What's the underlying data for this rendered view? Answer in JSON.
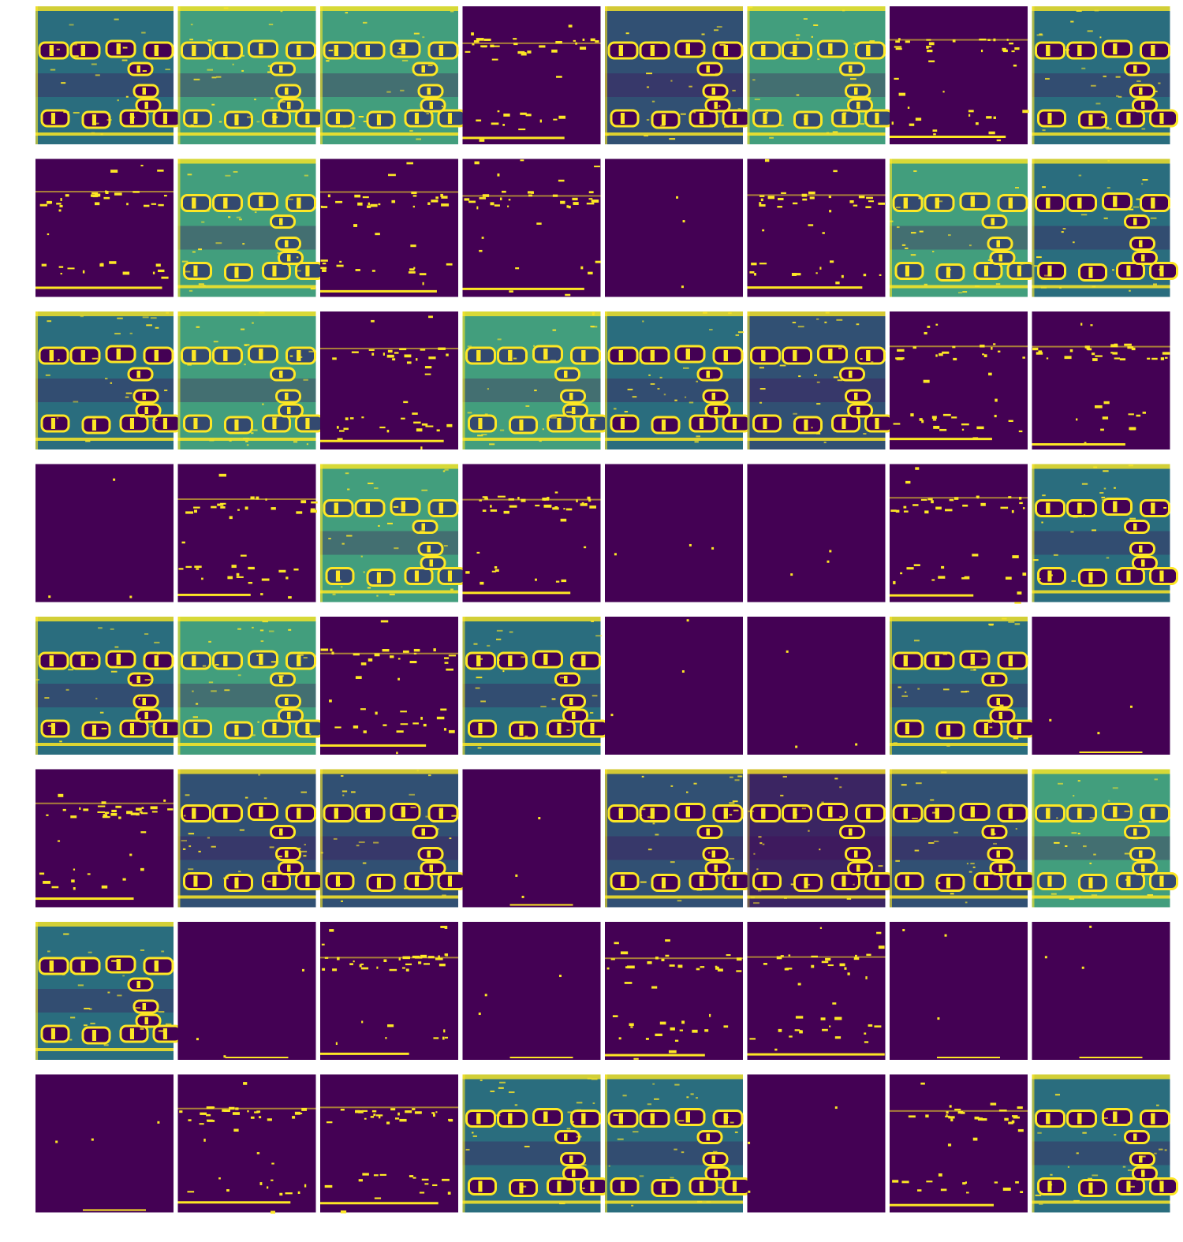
{
  "figure": {
    "rows": 8,
    "cols": 8,
    "colormap": {
      "low": "#440154",
      "mid": "#21918c",
      "high": "#fde725"
    },
    "background": "#ffffff",
    "feature_maps": [
      [
        "mixed",
        "scene-bright",
        "scene-bright",
        "sparse",
        "scene-dark",
        "scene-bright",
        "sparse",
        "mixed"
      ],
      [
        "sparse",
        "scene-bright",
        "sparse",
        "sparse",
        "empty",
        "sparse",
        "scene-bright",
        "mixed"
      ],
      [
        "scene",
        "scene-bright",
        "sparse",
        "scene-bright",
        "scene",
        "scene-dark",
        "sparse",
        "sparse"
      ],
      [
        "empty",
        "sparse",
        "scene-bright",
        "sparse",
        "empty",
        "empty",
        "sparse",
        "scene"
      ],
      [
        "scene",
        "scene-bright",
        "sparse",
        "scene",
        "empty",
        "empty",
        "scene",
        "empty"
      ],
      [
        "sparse",
        "scene-dark",
        "scene-dark",
        "empty",
        "scene-dark",
        "edges",
        "scene-dark",
        "scene-bright"
      ],
      [
        "scene",
        "empty",
        "sparse",
        "empty",
        "sparse",
        "sparse",
        "empty",
        "empty"
      ],
      [
        "empty",
        "sparse",
        "sparse",
        "scene",
        "scene",
        "empty",
        "sparse",
        "scene"
      ]
    ]
  }
}
